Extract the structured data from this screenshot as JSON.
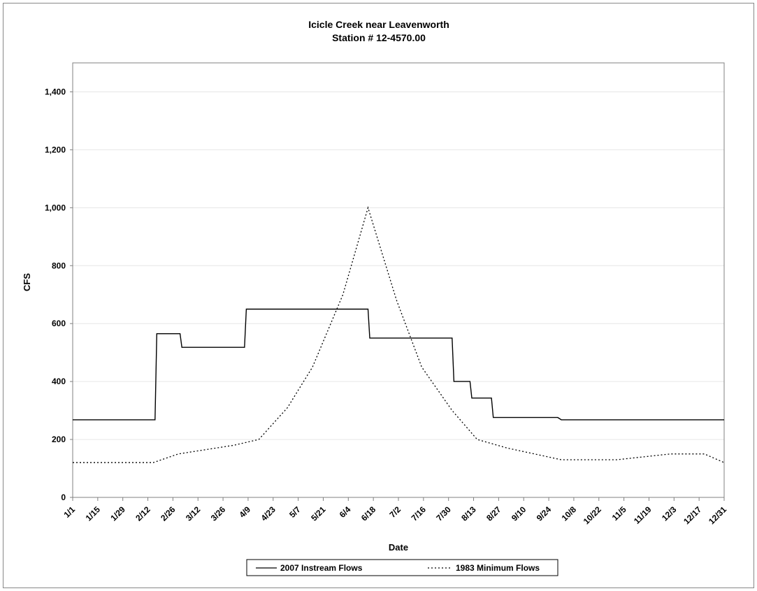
{
  "chart_data": {
    "type": "line",
    "title": "Icicle Creek near Leavenworth",
    "subtitle": "Station # 12-4570.00",
    "xlabel": "Date",
    "ylabel": "CFS",
    "ylim": [
      0,
      1500
    ],
    "yticks": [
      0,
      200,
      400,
      600,
      800,
      1000,
      1200,
      1400
    ],
    "ytick_labels": [
      "0",
      "200",
      "400",
      "600",
      "800",
      "1,000",
      "1,200",
      "1,400"
    ],
    "xticks": [
      "1/1",
      "1/15",
      "1/29",
      "2/12",
      "2/26",
      "3/12",
      "3/26",
      "4/9",
      "4/23",
      "5/7",
      "5/21",
      "6/4",
      "6/18",
      "7/2",
      "7/16",
      "7/30",
      "8/13",
      "8/27",
      "9/10",
      "9/24",
      "10/8",
      "10/22",
      "11/5",
      "11/19",
      "12/3",
      "12/17",
      "12/31"
    ],
    "grid": true,
    "legend_position": "bottom",
    "series": [
      {
        "name": "2007 Instream Flows",
        "style": "solid",
        "x": [
          "1/1",
          "2/16",
          "2/17",
          "3/2",
          "3/3",
          "4/7",
          "4/8",
          "6/15",
          "6/16",
          "8/1",
          "8/2",
          "8/11",
          "8/12",
          "8/23",
          "8/24",
          "9/29",
          "10/1",
          "12/31"
        ],
        "y": [
          268,
          268,
          565,
          565,
          518,
          518,
          650,
          650,
          550,
          550,
          400,
          400,
          343,
          343,
          276,
          276,
          268,
          268
        ]
      },
      {
        "name": "1983 Minimum Flows",
        "style": "dotted",
        "x": [
          "1/1",
          "2/15",
          "3/1",
          "4/1",
          "4/15",
          "5/1",
          "5/15",
          "6/1",
          "6/15",
          "7/1",
          "7/15",
          "8/1",
          "8/15",
          "9/1",
          "10/1",
          "10/22",
          "11/1",
          "12/1",
          "12/20",
          "12/31"
        ],
        "y": [
          120,
          120,
          150,
          180,
          200,
          310,
          450,
          700,
          1000,
          680,
          450,
          300,
          200,
          170,
          130,
          130,
          130,
          150,
          150,
          120
        ]
      }
    ]
  }
}
